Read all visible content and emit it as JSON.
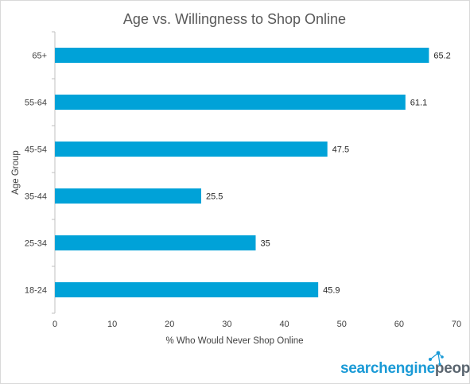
{
  "chart_data": {
    "type": "bar",
    "orientation": "horizontal",
    "title": "Age vs. Willingness to Shop Online",
    "xlabel": "% Who Would Never Shop Online",
    "ylabel": "Age Group",
    "categories": [
      "65+",
      "55-64",
      "45-54",
      "35-44",
      "25-34",
      "18-24"
    ],
    "values": [
      65.2,
      61.1,
      47.5,
      25.5,
      35,
      45.9
    ],
    "value_labels": [
      "65.2",
      "61.1",
      "47.5",
      "25.5",
      "35",
      "45.9"
    ],
    "xlim": [
      0,
      70
    ],
    "xticks": [
      0,
      10,
      20,
      30,
      40,
      50,
      60,
      70
    ],
    "xtick_labels": [
      "0",
      "10",
      "20",
      "30",
      "40",
      "50",
      "60",
      "70"
    ],
    "grid": false,
    "bar_color": "#00a2d8"
  },
  "branding": {
    "logo_part1": "searchengine",
    "logo_part2": "people",
    "color_part1": "#1a9ad6",
    "color_part2": "#5b6670"
  }
}
